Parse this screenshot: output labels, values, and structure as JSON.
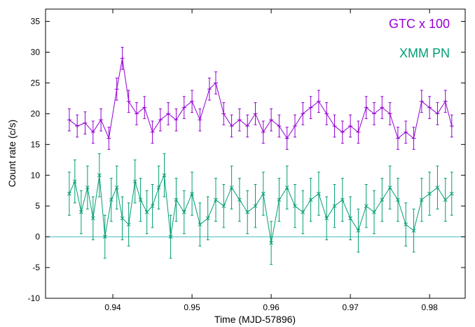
{
  "chart_data": {
    "type": "line",
    "xlabel": "Time (MJD-57896)",
    "ylabel": "Count rate (c/s)",
    "xlim": [
      0.9315,
      0.9845
    ],
    "ylim": [
      -10,
      37
    ],
    "x_ticks": [
      0.94,
      0.95,
      0.96,
      0.97,
      0.98
    ],
    "x_tick_labels": [
      "0.94",
      "0.95",
      "0.96",
      "0.97",
      "0.98"
    ],
    "y_ticks": [
      -10,
      -5,
      0,
      5,
      10,
      15,
      20,
      25,
      30,
      35
    ],
    "y_tick_labels": [
      "-10",
      "-5",
      "0",
      "5",
      "10",
      "15",
      "20",
      "25",
      "30",
      "35"
    ],
    "grid": false,
    "legend_position": "top-right",
    "reference_line": {
      "y": 0,
      "color": "#3fb7bf"
    },
    "series": [
      {
        "name": "GTC x 100",
        "color": "#9400d3",
        "marker": "+",
        "x": [
          0.9345,
          0.9355,
          0.9365,
          0.9375,
          0.9385,
          0.9395,
          0.9405,
          0.9412,
          0.942,
          0.943,
          0.944,
          0.945,
          0.946,
          0.947,
          0.948,
          0.949,
          0.95,
          0.951,
          0.9522,
          0.953,
          0.954,
          0.955,
          0.956,
          0.957,
          0.958,
          0.959,
          0.96,
          0.961,
          0.962,
          0.963,
          0.964,
          0.965,
          0.966,
          0.967,
          0.968,
          0.969,
          0.97,
          0.971,
          0.972,
          0.973,
          0.974,
          0.975,
          0.976,
          0.977,
          0.978,
          0.979,
          0.98,
          0.981,
          0.982,
          0.9828
        ],
        "y": [
          19,
          18,
          18.5,
          17,
          19,
          16,
          24,
          29,
          22,
          20,
          21,
          17,
          19,
          20,
          19,
          21,
          22,
          19,
          24,
          25,
          20,
          18,
          19,
          18,
          20,
          17,
          19,
          18,
          16,
          18,
          20,
          21,
          22,
          20,
          18,
          17,
          18,
          17,
          21,
          20,
          21,
          20,
          16,
          17,
          16,
          22,
          21,
          20,
          22,
          18
        ],
        "error": 1.8
      },
      {
        "name": "XMM PN",
        "color": "#009e73",
        "marker": "x",
        "x": [
          0.9345,
          0.9352,
          0.936,
          0.9368,
          0.9375,
          0.9383,
          0.939,
          0.9398,
          0.9405,
          0.9412,
          0.942,
          0.9428,
          0.9435,
          0.9443,
          0.945,
          0.9458,
          0.9465,
          0.9473,
          0.948,
          0.949,
          0.95,
          0.951,
          0.952,
          0.953,
          0.954,
          0.955,
          0.956,
          0.957,
          0.958,
          0.959,
          0.96,
          0.961,
          0.962,
          0.963,
          0.964,
          0.965,
          0.966,
          0.967,
          0.968,
          0.969,
          0.97,
          0.971,
          0.972,
          0.973,
          0.974,
          0.975,
          0.976,
          0.977,
          0.978,
          0.979,
          0.98,
          0.981,
          0.982,
          0.9828
        ],
        "y": [
          7,
          9,
          4,
          8,
          3,
          10,
          0,
          6,
          8,
          3,
          2,
          9,
          6,
          4,
          5,
          8,
          10,
          0,
          6,
          4,
          7,
          2,
          3,
          6,
          5,
          8,
          6,
          4,
          5,
          7,
          -1,
          6,
          8,
          5,
          4,
          6,
          7,
          3,
          5,
          6,
          3,
          1,
          5,
          4,
          6,
          8,
          6,
          2,
          1,
          6,
          7,
          8,
          6,
          7
        ],
        "error": 3.5
      }
    ]
  }
}
